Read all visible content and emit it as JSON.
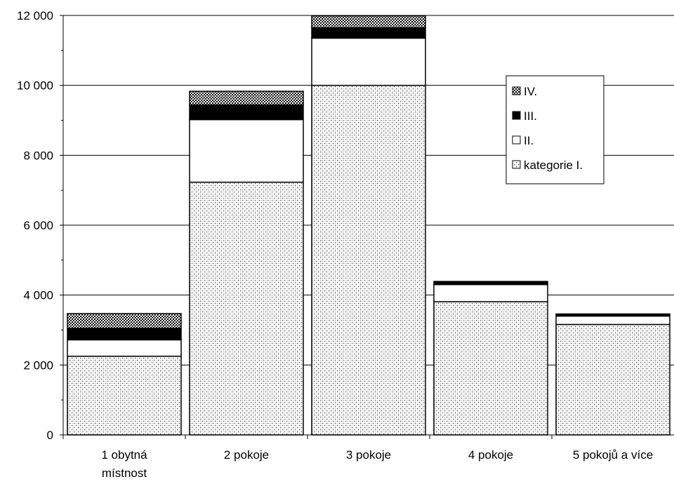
{
  "chart_data": {
    "type": "bar",
    "stacked": true,
    "categories": [
      [
        "1 obytná",
        "místnost"
      ],
      [
        "2 pokoje"
      ],
      [
        "3 pokoje"
      ],
      [
        "4 pokoje"
      ],
      [
        "5 pokojů a více"
      ]
    ],
    "series": [
      {
        "name": "kategorie I.",
        "values": [
          2250,
          7230,
          10000,
          3810,
          3160
        ],
        "fill": "dots"
      },
      {
        "name": "II.",
        "values": [
          470,
          1790,
          1350,
          490,
          240
        ],
        "fill": "#ffffff"
      },
      {
        "name": "III.",
        "values": [
          330,
          420,
          300,
          90,
          60
        ],
        "fill": "#000000"
      },
      {
        "name": "IV.",
        "values": [
          420,
          390,
          340,
          0,
          0
        ],
        "fill": "crosshatch"
      }
    ],
    "ylim": [
      0,
      12000
    ],
    "yticks": [
      {
        "value": 0,
        "label": "0"
      },
      {
        "value": 2000,
        "label": "2 000"
      },
      {
        "value": 4000,
        "label": "4 000"
      },
      {
        "value": 6000,
        "label": "6 000"
      },
      {
        "value": 8000,
        "label": "8 000"
      },
      {
        "value": 10000,
        "label": "10 000"
      },
      {
        "value": 12000,
        "label": "12 000"
      }
    ],
    "grid": true,
    "legend_position": "right",
    "legend_order": [
      "IV.",
      "III.",
      "II.",
      "kategorie I."
    ]
  }
}
